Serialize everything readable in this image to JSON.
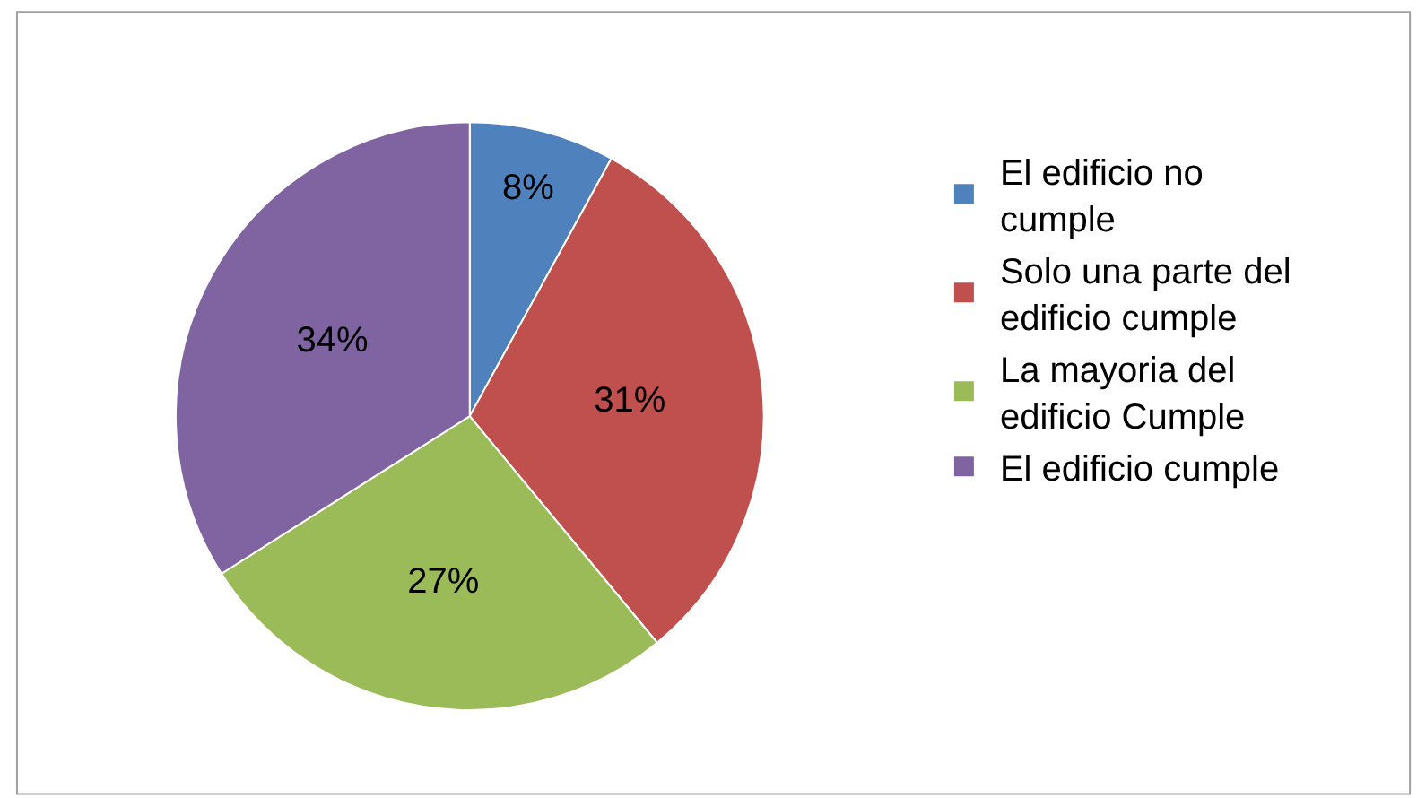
{
  "chart_data": {
    "type": "pie",
    "categories": [
      "El edificio no cumple",
      "Solo una parte del edificio cumple",
      "La mayoria del edificio Cumple",
      "El edificio cumple"
    ],
    "values": [
      8,
      31,
      27,
      34
    ],
    "colors": [
      "#4f81bd",
      "#c0504d",
      "#9bbb59",
      "#8064a2"
    ],
    "value_labels": [
      "8%",
      "31%",
      "27%",
      "34%"
    ],
    "legend": "right"
  }
}
